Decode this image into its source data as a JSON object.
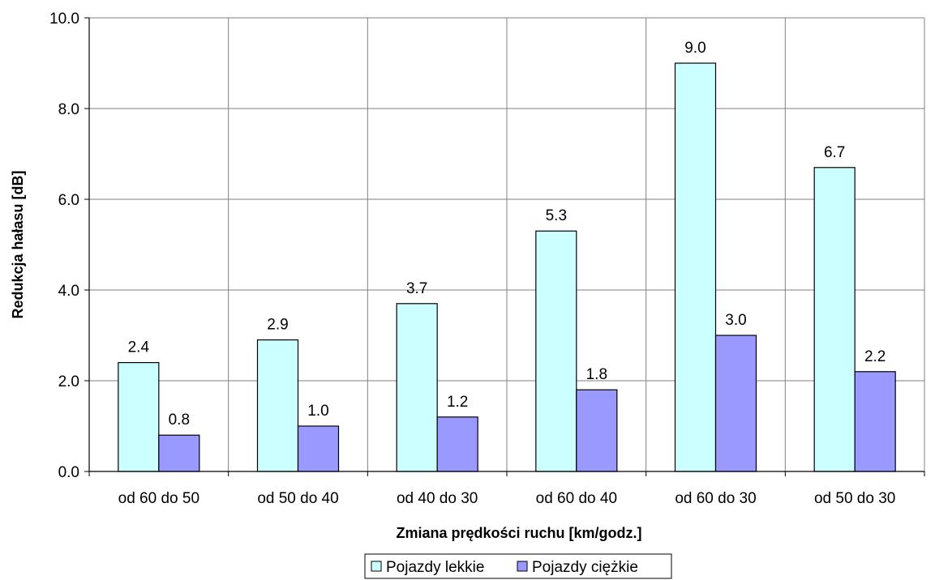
{
  "chart_data": {
    "type": "bar",
    "categories": [
      "od 60 do 50",
      "od 50 do 40",
      "od 40 do 30",
      "od 60 do 40",
      "od 60 do 30",
      "od 50 do 30"
    ],
    "series": [
      {
        "name": "Pojazdy lekkie",
        "values": [
          2.4,
          2.9,
          3.7,
          5.3,
          9.0,
          6.7
        ],
        "color": "#ccffff",
        "labels": [
          "2.4",
          "2.9",
          "3.7",
          "5.3",
          "9.0",
          "6.7"
        ]
      },
      {
        "name": "Pojazdy ciężkie",
        "values": [
          0.8,
          1.0,
          1.2,
          1.8,
          3.0,
          2.2
        ],
        "color": "#9999ff",
        "labels": [
          "0.8",
          "1.0",
          "1.2",
          "1.8",
          "3.0",
          "2.2"
        ]
      }
    ],
    "xlabel": "Zmiana prędkości ruchu [km/godz.]",
    "ylabel": "Redukcja hałasu [dB]",
    "ylim": [
      0,
      10
    ],
    "yticks": [
      "0.0",
      "2.0",
      "4.0",
      "6.0",
      "8.0",
      "10.0"
    ],
    "grid": true,
    "legend_position": "bottom"
  }
}
